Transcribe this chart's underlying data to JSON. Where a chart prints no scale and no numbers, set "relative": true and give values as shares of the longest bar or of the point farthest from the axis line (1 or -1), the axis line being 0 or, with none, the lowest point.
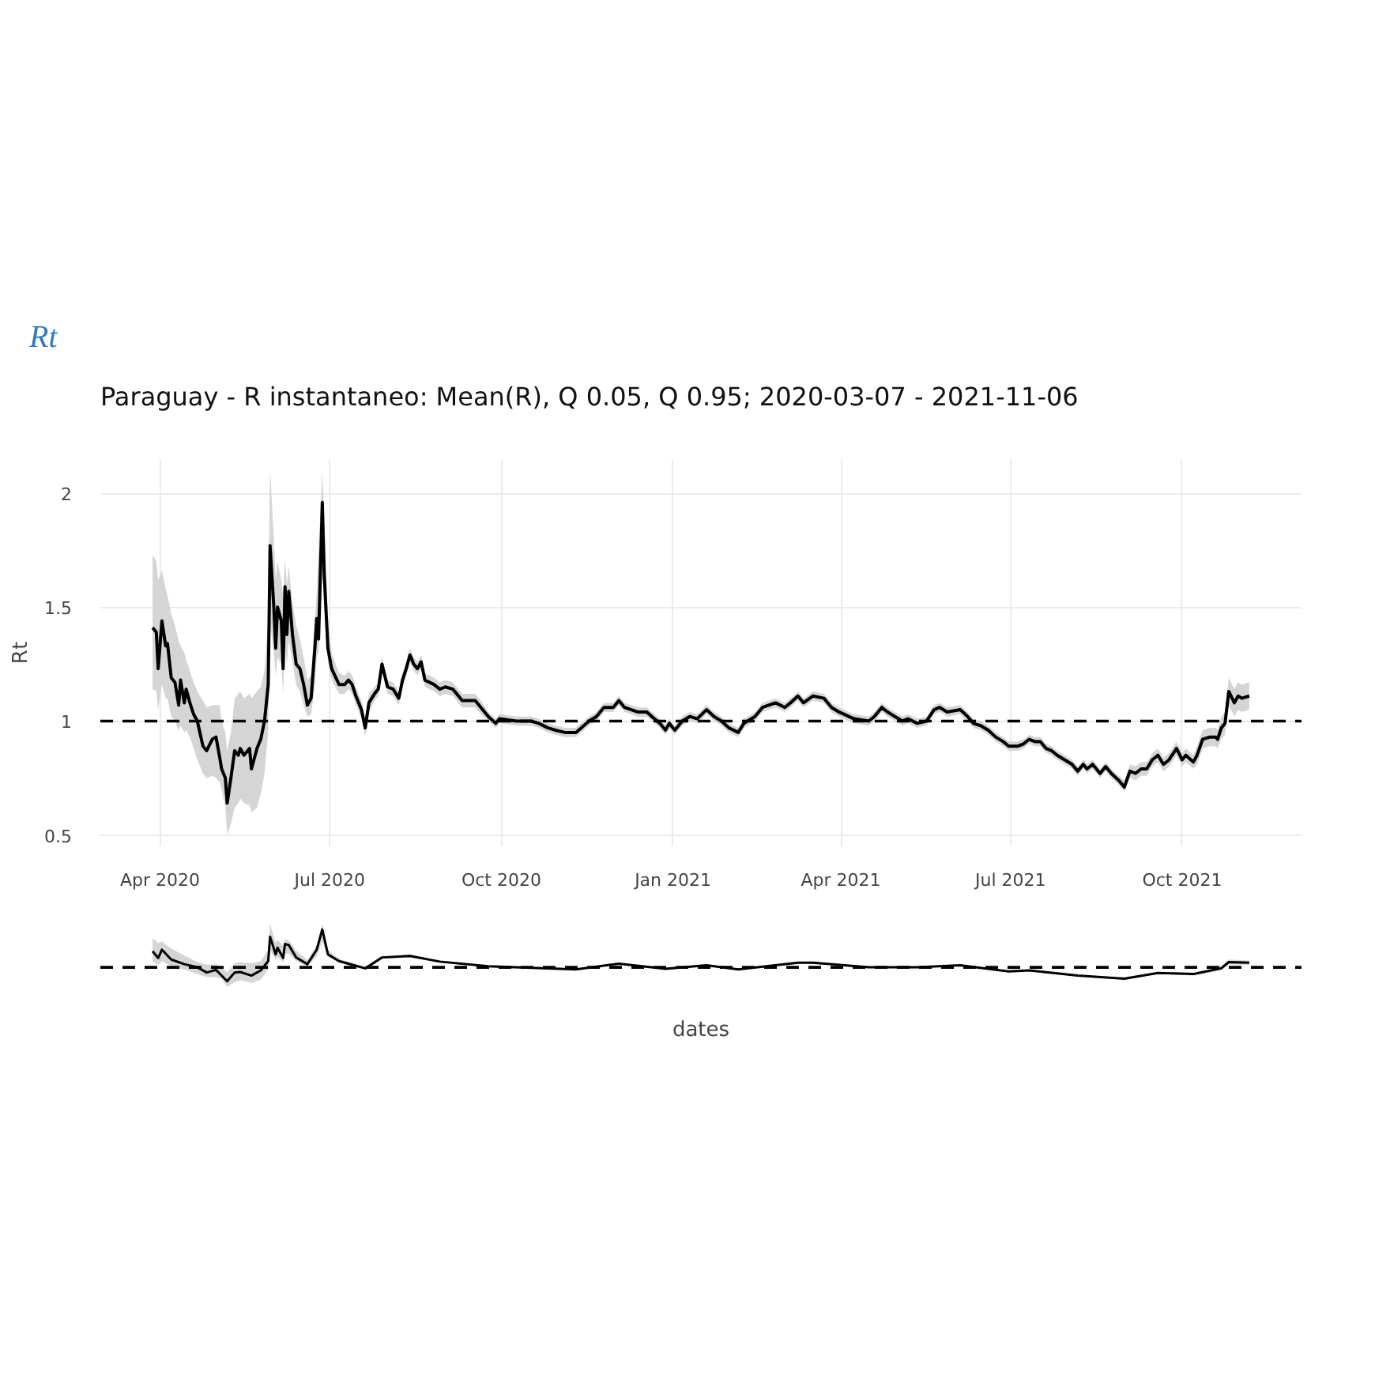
{
  "chart_data": [
    {
      "type": "line",
      "title": "Rt",
      "subtitle": "Paraguay - R instantaneo: Mean(R), Q 0.05, Q 0.95;  2020-03-07 - 2021-11-06",
      "ylabel": "Rt",
      "x": [
        "2020-03-28",
        "2020-03-30",
        "2020-03-31",
        "2020-04-02",
        "2020-04-04",
        "2020-04-05",
        "2020-04-07",
        "2020-04-09",
        "2020-04-11",
        "2020-04-12",
        "2020-04-14",
        "2020-04-15",
        "2020-04-17",
        "2020-04-19",
        "2020-04-21",
        "2020-04-24",
        "2020-04-26",
        "2020-04-29",
        "2020-05-01",
        "2020-05-03",
        "2020-05-04",
        "2020-05-06",
        "2020-05-07",
        "2020-05-09",
        "2020-05-11",
        "2020-05-13",
        "2020-05-14",
        "2020-05-16",
        "2020-05-19",
        "2020-05-20",
        "2020-05-23",
        "2020-05-25",
        "2020-05-27",
        "2020-05-29",
        "2020-05-30",
        "2020-06-01",
        "2020-06-02",
        "2020-06-03",
        "2020-06-05",
        "2020-06-06",
        "2020-06-07",
        "2020-06-08",
        "2020-06-09",
        "2020-06-11",
        "2020-06-13",
        "2020-06-15",
        "2020-06-17",
        "2020-06-19",
        "2020-06-21",
        "2020-06-23",
        "2020-06-24",
        "2020-06-25",
        "2020-06-27",
        "2020-06-28",
        "2020-06-30",
        "2020-07-02",
        "2020-07-06",
        "2020-07-09",
        "2020-07-11",
        "2020-07-13",
        "2020-07-15",
        "2020-07-18",
        "2020-07-20",
        "2020-07-22",
        "2020-07-25",
        "2020-07-27",
        "2020-07-29",
        "2020-08-01",
        "2020-08-04",
        "2020-08-07",
        "2020-08-09",
        "2020-08-11",
        "2020-08-13",
        "2020-08-15",
        "2020-08-17",
        "2020-08-19",
        "2020-08-21",
        "2020-08-26",
        "2020-08-29",
        "2020-09-01",
        "2020-09-05",
        "2020-09-10",
        "2020-09-17",
        "2020-09-20",
        "2020-09-24",
        "2020-09-28",
        "2020-09-30",
        "2020-10-09",
        "2020-10-17",
        "2020-10-21",
        "2020-10-26",
        "2020-10-30",
        "2020-11-04",
        "2020-11-10",
        "2020-11-17",
        "2020-11-21",
        "2020-11-25",
        "2020-11-30",
        "2020-12-03",
        "2020-12-06",
        "2020-12-13",
        "2020-12-18",
        "2020-12-22",
        "2020-12-25",
        "2020-12-28",
        "2020-12-30",
        "2021-01-02",
        "2021-01-06",
        "2021-01-10",
        "2021-01-14",
        "2021-01-19",
        "2021-01-23",
        "2021-01-27",
        "2021-01-31",
        "2021-02-05",
        "2021-02-08",
        "2021-02-14",
        "2021-02-18",
        "2021-02-25",
        "2021-03-02",
        "2021-03-05",
        "2021-03-09",
        "2021-03-12",
        "2021-03-17",
        "2021-03-23",
        "2021-03-27",
        "2021-03-31",
        "2021-04-08",
        "2021-04-16",
        "2021-04-19",
        "2021-04-23",
        "2021-04-26",
        "2021-05-04",
        "2021-05-07",
        "2021-05-12",
        "2021-05-17",
        "2021-05-21",
        "2021-05-24",
        "2021-05-28",
        "2021-06-04",
        "2021-06-08",
        "2021-06-11",
        "2021-06-15",
        "2021-06-19",
        "2021-06-23",
        "2021-06-27",
        "2021-06-30",
        "2021-07-05",
        "2021-07-08",
        "2021-07-11",
        "2021-07-14",
        "2021-07-17",
        "2021-07-20",
        "2021-07-23",
        "2021-07-26",
        "2021-07-30",
        "2021-08-03",
        "2021-08-06",
        "2021-08-09",
        "2021-08-11",
        "2021-08-14",
        "2021-08-18",
        "2021-08-21",
        "2021-08-24",
        "2021-08-28",
        "2021-08-31",
        "2021-09-03",
        "2021-09-06",
        "2021-09-09",
        "2021-09-12",
        "2021-09-15",
        "2021-09-18",
        "2021-09-21",
        "2021-09-24",
        "2021-09-28",
        "2021-10-01",
        "2021-10-03",
        "2021-10-07",
        "2021-10-09",
        "2021-10-12",
        "2021-10-16",
        "2021-10-19",
        "2021-10-20",
        "2021-10-22",
        "2021-10-24",
        "2021-10-26",
        "2021-10-29",
        "2021-10-31",
        "2021-11-02",
        "2021-11-06"
      ],
      "series": [
        {
          "color": "#000000",
          "values": [
            1.41,
            1.39,
            1.23,
            1.44,
            1.33,
            1.34,
            1.19,
            1.17,
            1.07,
            1.18,
            1.08,
            1.14,
            1.08,
            1.03,
            1.0,
            0.89,
            0.87,
            0.92,
            0.93,
            0.84,
            0.79,
            0.75,
            0.64,
            0.75,
            0.87,
            0.85,
            0.88,
            0.85,
            0.88,
            0.79,
            0.88,
            0.92,
            1.0,
            1.16,
            1.77,
            1.5,
            1.32,
            1.5,
            1.44,
            1.23,
            1.59,
            1.38,
            1.57,
            1.38,
            1.25,
            1.23,
            1.16,
            1.07,
            1.1,
            1.32,
            1.45,
            1.36,
            1.96,
            1.65,
            1.32,
            1.23,
            1.16,
            1.16,
            1.18,
            1.16,
            1.11,
            1.05,
            0.97,
            1.08,
            1.12,
            1.14,
            1.25,
            1.15,
            1.14,
            1.1,
            1.18,
            1.23,
            1.29,
            1.25,
            1.23,
            1.26,
            1.18,
            1.16,
            1.14,
            1.15,
            1.14,
            1.09,
            1.09,
            1.06,
            1.02,
            0.99,
            1.01,
            1.0,
            1.0,
            0.99,
            0.97,
            0.96,
            0.95,
            0.95,
            1.0,
            1.02,
            1.06,
            1.06,
            1.09,
            1.06,
            1.04,
            1.04,
            1.01,
            0.99,
            0.96,
            0.99,
            0.96,
            1.0,
            1.02,
            1.01,
            1.05,
            1.02,
            1.0,
            0.97,
            0.95,
            0.99,
            1.02,
            1.06,
            1.08,
            1.06,
            1.08,
            1.11,
            1.08,
            1.11,
            1.1,
            1.06,
            1.04,
            1.01,
            1.0,
            1.02,
            1.06,
            1.04,
            1.0,
            1.01,
            0.99,
            1.0,
            1.05,
            1.06,
            1.04,
            1.05,
            1.02,
            0.99,
            0.98,
            0.96,
            0.93,
            0.91,
            0.89,
            0.89,
            0.9,
            0.92,
            0.91,
            0.91,
            0.88,
            0.87,
            0.85,
            0.83,
            0.81,
            0.78,
            0.81,
            0.79,
            0.81,
            0.77,
            0.8,
            0.77,
            0.74,
            0.71,
            0.78,
            0.77,
            0.79,
            0.79,
            0.83,
            0.85,
            0.81,
            0.83,
            0.88,
            0.83,
            0.85,
            0.82,
            0.85,
            0.92,
            0.93,
            0.93,
            0.92,
            0.97,
            0.99,
            1.13,
            1.08,
            1.11,
            1.1,
            1.11
          ],
          "lower": [
            1.14,
            1.13,
            1.05,
            1.16,
            1.1,
            1.1,
            1.02,
            1.0,
            0.96,
            0.98,
            0.95,
            0.96,
            0.93,
            0.88,
            0.83,
            0.77,
            0.75,
            0.76,
            0.75,
            0.73,
            0.7,
            0.62,
            0.5,
            0.55,
            0.62,
            0.64,
            0.66,
            0.64,
            0.63,
            0.6,
            0.62,
            0.68,
            0.77,
            0.95,
            1.43,
            1.3,
            1.2,
            1.28,
            1.25,
            1.12,
            1.34,
            1.25,
            1.35,
            1.26,
            1.16,
            1.13,
            1.07,
            1.02,
            1.03,
            1.15,
            1.28,
            1.3,
            1.65,
            1.5,
            1.26,
            1.18,
            1.12,
            1.12,
            1.14,
            1.12,
            1.07,
            1.01,
            0.93,
            1.04,
            1.09,
            1.11,
            1.21,
            1.12,
            1.11,
            1.07,
            1.15,
            1.2,
            1.26,
            1.22,
            1.2,
            1.23,
            1.15,
            1.13,
            1.11,
            1.12,
            1.11,
            1.06,
            1.06,
            1.03,
            1.0,
            0.97,
            0.99,
            0.98,
            0.98,
            0.97,
            0.95,
            0.94,
            0.93,
            0.93,
            0.98,
            1.0,
            1.04,
            1.04,
            1.07,
            1.04,
            1.02,
            1.02,
            0.99,
            0.97,
            0.94,
            0.97,
            0.94,
            0.98,
            1.0,
            0.99,
            1.03,
            1.0,
            0.98,
            0.95,
            0.93,
            0.97,
            1.0,
            1.04,
            1.06,
            1.04,
            1.06,
            1.09,
            1.06,
            1.09,
            1.08,
            1.04,
            1.02,
            0.99,
            0.98,
            1.0,
            1.04,
            1.02,
            0.98,
            0.99,
            0.97,
            0.98,
            1.03,
            1.04,
            1.02,
            1.03,
            1.0,
            0.97,
            0.96,
            0.94,
            0.91,
            0.89,
            0.87,
            0.87,
            0.88,
            0.9,
            0.89,
            0.89,
            0.86,
            0.85,
            0.83,
            0.81,
            0.79,
            0.76,
            0.79,
            0.77,
            0.79,
            0.75,
            0.78,
            0.75,
            0.72,
            0.69,
            0.75,
            0.74,
            0.76,
            0.76,
            0.8,
            0.82,
            0.78,
            0.8,
            0.85,
            0.8,
            0.82,
            0.79,
            0.81,
            0.88,
            0.89,
            0.89,
            0.88,
            0.92,
            0.94,
            1.07,
            1.02,
            1.05,
            1.04,
            1.05
          ],
          "upper": [
            1.73,
            1.7,
            1.62,
            1.66,
            1.58,
            1.55,
            1.47,
            1.42,
            1.35,
            1.33,
            1.3,
            1.27,
            1.22,
            1.17,
            1.13,
            1.09,
            1.06,
            1.07,
            1.07,
            1.07,
            1.0,
            0.95,
            0.87,
            0.95,
            1.1,
            1.12,
            1.13,
            1.1,
            1.12,
            1.1,
            1.13,
            1.15,
            1.22,
            1.45,
            2.11,
            1.8,
            1.62,
            1.7,
            1.62,
            1.55,
            1.71,
            1.6,
            1.68,
            1.52,
            1.42,
            1.36,
            1.28,
            1.18,
            1.2,
            1.45,
            1.56,
            1.75,
            2.1,
            1.88,
            1.45,
            1.3,
            1.21,
            1.2,
            1.22,
            1.2,
            1.15,
            1.09,
            1.01,
            1.12,
            1.15,
            1.17,
            1.28,
            1.18,
            1.17,
            1.13,
            1.21,
            1.26,
            1.32,
            1.28,
            1.26,
            1.29,
            1.21,
            1.19,
            1.17,
            1.18,
            1.17,
            1.12,
            1.12,
            1.09,
            1.04,
            1.01,
            1.03,
            1.02,
            1.02,
            1.01,
            0.99,
            0.98,
            0.97,
            0.97,
            1.02,
            1.04,
            1.08,
            1.08,
            1.11,
            1.08,
            1.06,
            1.06,
            1.03,
            1.01,
            0.98,
            1.01,
            0.98,
            1.02,
            1.04,
            1.03,
            1.07,
            1.04,
            1.02,
            0.99,
            0.97,
            1.01,
            1.04,
            1.08,
            1.1,
            1.08,
            1.1,
            1.13,
            1.1,
            1.13,
            1.12,
            1.08,
            1.06,
            1.03,
            1.02,
            1.04,
            1.08,
            1.06,
            1.02,
            1.03,
            1.01,
            1.02,
            1.07,
            1.08,
            1.06,
            1.07,
            1.04,
            1.01,
            1.0,
            0.98,
            0.95,
            0.93,
            0.91,
            0.91,
            0.92,
            0.94,
            0.93,
            0.93,
            0.9,
            0.89,
            0.87,
            0.85,
            0.83,
            0.8,
            0.83,
            0.81,
            0.83,
            0.79,
            0.82,
            0.79,
            0.76,
            0.74,
            0.81,
            0.8,
            0.82,
            0.82,
            0.86,
            0.88,
            0.84,
            0.86,
            0.91,
            0.86,
            0.88,
            0.85,
            0.89,
            0.96,
            0.97,
            0.97,
            0.96,
            1.02,
            1.04,
            1.19,
            1.14,
            1.17,
            1.16,
            1.17
          ]
        }
      ],
      "xlim": [
        "2020-02-29",
        "2021-12-04"
      ],
      "ylim": [
        0.45,
        2.15
      ],
      "xticks": [
        {
          "value": "2020-04-01",
          "label": "Apr 2020"
        },
        {
          "value": "2020-07-01",
          "label": "Jul 2020"
        },
        {
          "value": "2020-10-01",
          "label": "Oct 2020"
        },
        {
          "value": "2021-01-01",
          "label": "Jan 2021"
        },
        {
          "value": "2021-04-01",
          "label": "Apr 2021"
        },
        {
          "value": "2021-07-01",
          "label": "Jul 2021"
        },
        {
          "value": "2021-10-01",
          "label": "Oct 2021"
        }
      ],
      "yticks": [
        0.5,
        1,
        1.5,
        2
      ],
      "ref_lines": [
        {
          "axis": "y",
          "value": 1,
          "color": "#000000",
          "line_style": "dashed"
        }
      ],
      "grid": true
    },
    {
      "type": "line",
      "relative": true,
      "xlabel": "dates",
      "x": [
        "2020-03-28",
        "2020-03-31",
        "2020-04-02",
        "2020-04-07",
        "2020-04-14",
        "2020-04-21",
        "2020-04-26",
        "2020-05-01",
        "2020-05-04",
        "2020-05-07",
        "2020-05-11",
        "2020-05-14",
        "2020-05-20",
        "2020-05-25",
        "2020-05-29",
        "2020-05-30",
        "2020-06-02",
        "2020-06-03",
        "2020-06-06",
        "2020-06-07",
        "2020-06-09",
        "2020-06-13",
        "2020-06-19",
        "2020-06-24",
        "2020-06-27",
        "2020-06-30",
        "2020-07-06",
        "2020-07-20",
        "2020-07-29",
        "2020-08-13",
        "2020-08-29",
        "2020-09-24",
        "2020-10-26",
        "2020-11-10",
        "2020-12-03",
        "2020-12-28",
        "2021-01-19",
        "2021-02-05",
        "2021-03-09",
        "2021-03-17",
        "2021-04-16",
        "2021-05-12",
        "2021-06-04",
        "2021-06-30",
        "2021-07-11",
        "2021-08-06",
        "2021-08-31",
        "2021-09-18",
        "2021-10-07",
        "2021-10-22",
        "2021-10-26",
        "2021-11-06"
      ],
      "series": [
        {
          "color": "#000000",
          "values": [
            0.58,
            0.45,
            0.61,
            0.42,
            0.33,
            0.27,
            0.17,
            0.22,
            0.11,
            0,
            0.17,
            0.18,
            0.11,
            0.21,
            0.39,
            0.86,
            0.52,
            0.65,
            0.45,
            0.72,
            0.7,
            0.46,
            0.33,
            0.61,
            1,
            0.52,
            0.39,
            0.25,
            0.46,
            0.49,
            0.38,
            0.29,
            0.25,
            0.23,
            0.34,
            0.24,
            0.31,
            0.23,
            0.36,
            0.36,
            0.27,
            0.27,
            0.31,
            0.19,
            0.21,
            0.11,
            0.05,
            0.16,
            0.14,
            0.25,
            0.37,
            0.36
          ],
          "lower": [
            0.38,
            0.31,
            0.39,
            0.29,
            0.23,
            0.14,
            0.08,
            0.08,
            0.05,
            -0.11,
            -0.02,
            0.02,
            -0.03,
            0.03,
            0.23,
            0.6,
            0.42,
            0.48,
            0.36,
            0.53,
            0.54,
            0.39,
            0.29,
            0.48,
            0.77,
            0.47,
            0.36,
            0.22,
            0.43,
            0.47,
            0.36,
            0.27,
            0.23,
            0.22,
            0.33,
            0.23,
            0.3,
            0.22,
            0.34,
            0.34,
            0.26,
            0.25,
            0.3,
            0.17,
            0.2,
            0.09,
            0.04,
            0.14,
            0.11,
            0.21,
            0.33,
            0.31
          ],
          "upper": [
            0.83,
            0.74,
            0.77,
            0.63,
            0.5,
            0.37,
            0.32,
            0.33,
            0.27,
            0.17,
            0.35,
            0.37,
            0.35,
            0.39,
            0.61,
            1.11,
            0.74,
            0.8,
            0.69,
            0.81,
            0.79,
            0.59,
            0.41,
            0.7,
            1.11,
            0.61,
            0.43,
            0.28,
            0.48,
            0.52,
            0.4,
            0.3,
            0.27,
            0.25,
            0.36,
            0.26,
            0.33,
            0.25,
            0.37,
            0.37,
            0.29,
            0.28,
            0.33,
            0.2,
            0.23,
            0.12,
            0.08,
            0.18,
            0.16,
            0.29,
            0.42,
            0.4
          ]
        }
      ],
      "xlim": [
        "2020-02-29",
        "2021-12-04"
      ],
      "ref_lines": [
        {
          "axis": "y",
          "value": 0.27,
          "color": "#000000",
          "line_style": "dashed"
        }
      ],
      "tick_labels": false
    }
  ]
}
